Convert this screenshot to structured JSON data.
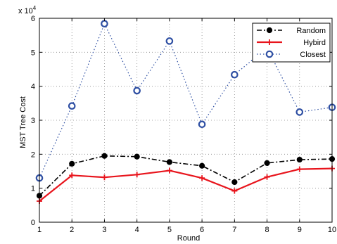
{
  "chart_data": {
    "type": "line",
    "title": "",
    "xlabel": "Round",
    "ylabel": "MST Tree Cost",
    "y_scale_multiplier": "x 10",
    "y_scale_exponent": "4",
    "x_ticks": [
      "1",
      "2",
      "3",
      "4",
      "5",
      "6",
      "7",
      "8",
      "9",
      "10"
    ],
    "y_ticks": [
      "0",
      "1",
      "2",
      "3",
      "4",
      "5",
      "6"
    ],
    "xlim": [
      1,
      10
    ],
    "ylim": [
      0,
      6
    ],
    "grid": true,
    "legend_position": "top-right",
    "x": [
      1,
      2,
      3,
      4,
      5,
      6,
      7,
      8,
      9,
      10
    ],
    "series": [
      {
        "name": "Random",
        "color": "#000000",
        "style": "dash-dot",
        "marker": "filled-circle",
        "values": [
          0.78,
          1.72,
          1.95,
          1.93,
          1.77,
          1.66,
          1.18,
          1.74,
          1.84,
          1.86
        ]
      },
      {
        "name": "Hybird",
        "color": "#e8141c",
        "style": "solid",
        "marker": "plus",
        "values": [
          0.62,
          1.38,
          1.32,
          1.4,
          1.52,
          1.3,
          0.92,
          1.33,
          1.56,
          1.58
        ]
      },
      {
        "name": "Closest",
        "color": "#2e4fa3",
        "style": "dotted",
        "marker": "open-circle",
        "values": [
          1.3,
          3.42,
          5.84,
          3.87,
          5.33,
          2.88,
          4.34,
          5.13,
          3.24,
          3.38
        ]
      }
    ]
  }
}
